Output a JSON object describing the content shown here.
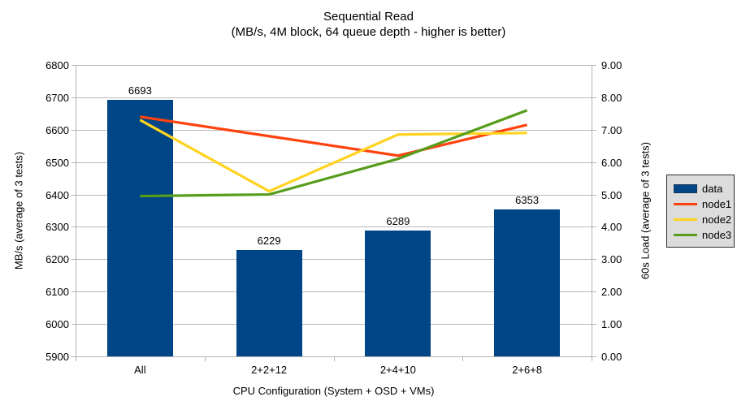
{
  "title": "Sequential Read",
  "subtitle": "(MB/s, 4M block, 64 queue depth - higher is better)",
  "chart_data": {
    "type": "bar",
    "subtype": "combo-bar-line-dual-axis",
    "categories": [
      "All",
      "2+2+12",
      "2+4+10",
      "2+6+8"
    ],
    "bar_series": {
      "name": "data",
      "axis": "left",
      "values": [
        6693,
        6229,
        6289,
        6353
      ],
      "labels": [
        "6693",
        "6229",
        "6289",
        "6353"
      ],
      "color": "#004586"
    },
    "line_series": [
      {
        "name": "node1",
        "axis": "right",
        "values": [
          7.4,
          6.8,
          6.2,
          7.15
        ],
        "color": "#ff420e"
      },
      {
        "name": "node2",
        "axis": "right",
        "values": [
          7.3,
          5.1,
          6.85,
          6.9
        ],
        "color": "#ffd320"
      },
      {
        "name": "node3",
        "axis": "right",
        "values": [
          4.95,
          5.0,
          6.1,
          7.6
        ],
        "color": "#579d1c"
      }
    ],
    "xlabel": "CPU Configuration (System + OSD + VMs)",
    "ylabel_left": "MB/s (average of 3 tests)",
    "ylabel_right": "60s Load (average of 3 tests)",
    "ylim_left": [
      5900,
      6800
    ],
    "ytick_step_left": 100,
    "ylim_right": [
      0,
      9
    ],
    "ytick_step_right": 1,
    "right_tick_decimals": 2,
    "grid": true,
    "legend_position": "right",
    "legend_entries": [
      "data",
      "node1",
      "node2",
      "node3"
    ]
  },
  "colors": {
    "background": "#ffffff",
    "bar": "#004586",
    "node1": "#ff420e",
    "node2": "#ffd320",
    "node3": "#579d1c",
    "gridline": "#b9b9b9",
    "axis": "#b3b3b3",
    "legend_bg": "#dcdcdc",
    "text": "#000000"
  }
}
